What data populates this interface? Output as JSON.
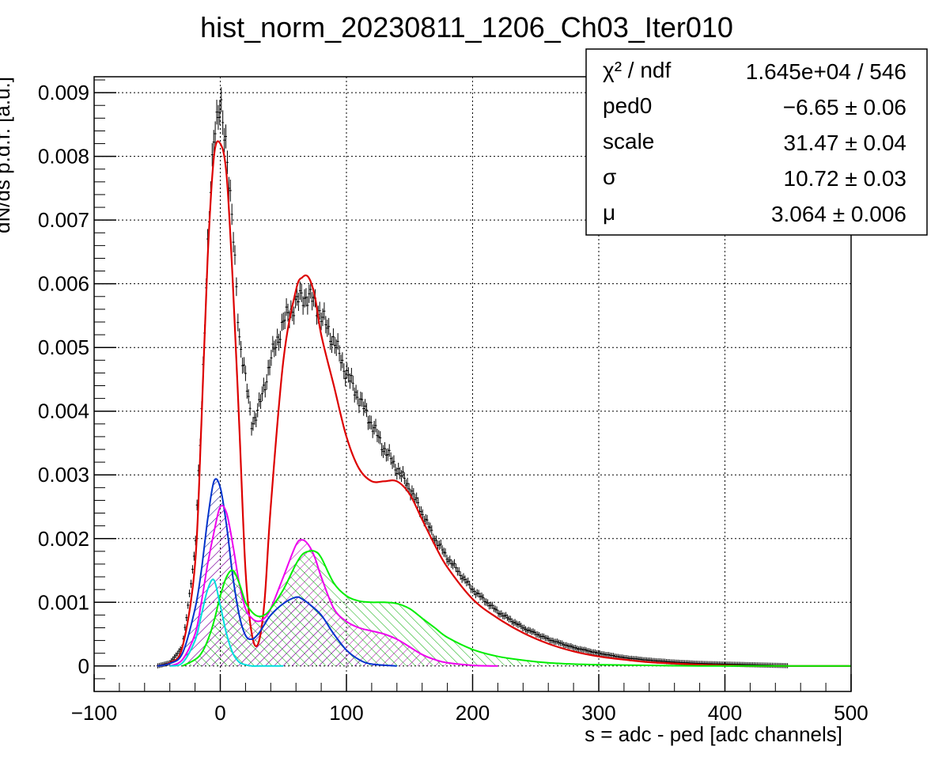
{
  "chart_data": {
    "type": "histogram-with-fit",
    "title": "hist_norm_20230811_1206_Ch03_Iter010",
    "xlabel": "s = adc - ped [adc channels]",
    "ylabel": "dN/ds p.d.f. [a.u.]",
    "xlim": [
      -100,
      500
    ],
    "ylim": [
      -0.0004,
      0.00925
    ],
    "x_ticks": [
      -100,
      0,
      100,
      200,
      300,
      400,
      500
    ],
    "x_tick_labels": [
      "−100",
      "0",
      "100",
      "200",
      "300",
      "400",
      "500"
    ],
    "y_ticks": [
      0,
      0.001,
      0.002,
      0.003,
      0.004,
      0.005,
      0.006,
      0.007,
      0.008,
      0.009
    ],
    "y_tick_labels": [
      "0",
      "0.001",
      "0.002",
      "0.003",
      "0.004",
      "0.005",
      "0.006",
      "0.007",
      "0.008",
      "0.009"
    ],
    "grid": true,
    "stats_box": {
      "placement": "top-right",
      "rows": [
        {
          "label": "χ² / ndf",
          "value": "1.645e+04 / 546"
        },
        {
          "label": "ped0",
          "value": "−6.65 ± 0.06"
        },
        {
          "label": "scale",
          "value": "31.47 ± 0.04"
        },
        {
          "label": "σ",
          "value": "10.72 ± 0.03"
        },
        {
          "label": "μ",
          "value": "3.064 ± 0.006"
        }
      ]
    },
    "data_points": {
      "color": "#000000",
      "x": [
        -50,
        -40,
        -30,
        -20,
        -15,
        -10,
        -5,
        0,
        5,
        10,
        15,
        20,
        25,
        30,
        35,
        40,
        50,
        60,
        65,
        70,
        75,
        80,
        90,
        100,
        110,
        120,
        130,
        140,
        150,
        160,
        170,
        180,
        200,
        220,
        240,
        260,
        280,
        300,
        320,
        340,
        360,
        380,
        400,
        420,
        440,
        460,
        480,
        500
      ],
      "y": [
        0,
        5e-05,
        0.0003,
        0.0018,
        0.004,
        0.0065,
        0.0085,
        0.0087,
        0.0082,
        0.0068,
        0.0052,
        0.0045,
        0.0038,
        0.004,
        0.0044,
        0.0048,
        0.0054,
        0.0057,
        0.0058,
        0.0058,
        0.0057,
        0.0055,
        0.0051,
        0.0046,
        0.0042,
        0.0038,
        0.0034,
        0.0031,
        0.0028,
        0.0024,
        0.002,
        0.0017,
        0.0012,
        0.00085,
        0.0006,
        0.00042,
        0.00029,
        0.0002,
        0.00013,
        9e-05,
        6e-05,
        4e-05,
        3e-05,
        2e-05,
        1e-05,
        0,
        0,
        0
      ]
    },
    "series": [
      {
        "color": "#dd0000",
        "x": [
          -50,
          -40,
          -30,
          -20,
          -15,
          -10,
          -5,
          0,
          5,
          10,
          15,
          20,
          25,
          30,
          35,
          40,
          50,
          60,
          65,
          70,
          75,
          80,
          90,
          100,
          110,
          120,
          130,
          140,
          150,
          160,
          170,
          180,
          200,
          220,
          240,
          260,
          280,
          300,
          320,
          340,
          360,
          380,
          400,
          420,
          440,
          460,
          480,
          500
        ],
        "y": [
          0,
          5e-05,
          0.0003,
          0.0016,
          0.0038,
          0.0064,
          0.008,
          0.0082,
          0.0077,
          0.006,
          0.0038,
          0.0015,
          0.0005,
          0.00035,
          0.001,
          0.0025,
          0.0048,
          0.0059,
          0.0061,
          0.0061,
          0.0058,
          0.0052,
          0.0044,
          0.0036,
          0.0031,
          0.0029,
          0.0029,
          0.0029,
          0.0027,
          0.0023,
          0.0019,
          0.00155,
          0.00105,
          0.00075,
          0.00052,
          0.00035,
          0.00023,
          0.00015,
          0.0001,
          6e-05,
          4e-05,
          2e-05,
          1e-05,
          0,
          0,
          0,
          0,
          0
        ]
      },
      {
        "color": "#0033cc",
        "hatch": "#000080",
        "x": [
          -50,
          -40,
          -30,
          -20,
          -15,
          -10,
          -5,
          0,
          5,
          10,
          15,
          20,
          25,
          30,
          35,
          40,
          50,
          60,
          65,
          70,
          80,
          90,
          100,
          110,
          120,
          140
        ],
        "y": [
          0,
          4e-05,
          0.0002,
          0.0009,
          0.0015,
          0.0023,
          0.0029,
          0.0028,
          0.0022,
          0.0014,
          0.0008,
          0.00048,
          0.00042,
          0.0005,
          0.00065,
          0.0008,
          0.00098,
          0.00108,
          0.00105,
          0.00098,
          0.0008,
          0.0005,
          0.00025,
          0.0001,
          3e-05,
          0
        ]
      },
      {
        "color": "#ee00ee",
        "hatch": "#aa00aa",
        "x": [
          -40,
          -30,
          -20,
          -15,
          -10,
          -5,
          0,
          5,
          10,
          15,
          20,
          25,
          30,
          35,
          40,
          50,
          60,
          65,
          70,
          75,
          80,
          90,
          100,
          110,
          120,
          130,
          140,
          150,
          160,
          170,
          180,
          200,
          220
        ],
        "y": [
          0,
          0.0001,
          0.0005,
          0.001,
          0.0016,
          0.0021,
          0.0025,
          0.0024,
          0.0019,
          0.0013,
          0.0009,
          0.00075,
          0.0007,
          0.00075,
          0.0009,
          0.0014,
          0.0019,
          0.00198,
          0.0019,
          0.0017,
          0.0014,
          0.0009,
          0.0007,
          0.0006,
          0.00055,
          0.0005,
          0.00042,
          0.0003,
          0.00018,
          0.0001,
          5e-05,
          1e-05,
          0
        ]
      },
      {
        "color": "#00ee00",
        "hatch": "#00aa00",
        "x": [
          -30,
          -20,
          -15,
          -10,
          -5,
          0,
          5,
          10,
          15,
          20,
          25,
          30,
          35,
          40,
          50,
          60,
          65,
          70,
          75,
          80,
          90,
          100,
          110,
          120,
          130,
          140,
          150,
          160,
          170,
          180,
          200,
          220,
          240,
          260,
          280,
          300,
          340,
          380
        ],
        "y": [
          0,
          0.0001,
          0.0002,
          0.0004,
          0.0007,
          0.0011,
          0.0014,
          0.0015,
          0.0013,
          0.001,
          0.00085,
          0.00078,
          0.0008,
          0.0009,
          0.0012,
          0.0016,
          0.00175,
          0.0018,
          0.0018,
          0.0017,
          0.0013,
          0.0011,
          0.00102,
          0.001,
          0.001,
          0.00098,
          0.0009,
          0.00075,
          0.0006,
          0.00045,
          0.00026,
          0.00015,
          9e-05,
          5e-05,
          3e-05,
          2e-05,
          1e-05,
          0
        ]
      },
      {
        "color": "#00dddd",
        "x": [
          -40,
          -30,
          -20,
          -15,
          -10,
          -5,
          0,
          5,
          10,
          15,
          20,
          25,
          30,
          40,
          50
        ],
        "y": [
          0,
          5e-05,
          0.0004,
          0.0008,
          0.0012,
          0.00135,
          0.00095,
          0.0005,
          0.0002,
          6e-05,
          2e-05,
          0,
          0,
          0,
          0
        ]
      }
    ]
  }
}
